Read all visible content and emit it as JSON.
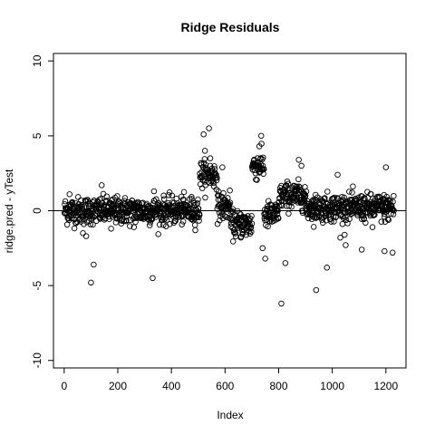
{
  "chart_data": {
    "type": "scatter",
    "title": "Ridge Residuals",
    "xlabel": "Index",
    "ylabel": "ridge.pred - yTest",
    "xlim": [
      -40,
      1275
    ],
    "ylim": [
      -10.5,
      10.5
    ],
    "x_ticks": [
      0,
      200,
      400,
      600,
      800,
      1000,
      1200
    ],
    "y_ticks": [
      -10,
      -5,
      0,
      5,
      10
    ],
    "reference_line": 0,
    "n_points": 1230,
    "point_style": "open-circle",
    "baseline_noise_sd": 0.45,
    "segments": [
      {
        "x_start": 1,
        "x_end": 505,
        "level": 0.0
      },
      {
        "x_start": 506,
        "x_end": 570,
        "level": 2.4
      },
      {
        "x_start": 571,
        "x_end": 620,
        "level": 0.3
      },
      {
        "x_start": 621,
        "x_end": 700,
        "level": -0.9
      },
      {
        "x_start": 701,
        "x_end": 745,
        "level": 3.0
      },
      {
        "x_start": 746,
        "x_end": 800,
        "level": -0.3
      },
      {
        "x_start": 801,
        "x_end": 900,
        "level": 1.0
      },
      {
        "x_start": 901,
        "x_end": 1230,
        "level": 0.2
      }
    ],
    "notable_points": [
      {
        "x": 20,
        "y": 1.1
      },
      {
        "x": 70,
        "y": -1.5
      },
      {
        "x": 82,
        "y": -1.7
      },
      {
        "x": 100,
        "y": -4.8
      },
      {
        "x": 110,
        "y": -3.6
      },
      {
        "x": 140,
        "y": 1.7
      },
      {
        "x": 175,
        "y": -1.2
      },
      {
        "x": 260,
        "y": -1.1
      },
      {
        "x": 330,
        "y": -4.5
      },
      {
        "x": 335,
        "y": 1.3
      },
      {
        "x": 520,
        "y": 5.1
      },
      {
        "x": 525,
        "y": 4.0
      },
      {
        "x": 540,
        "y": 5.5
      },
      {
        "x": 545,
        "y": 3.5
      },
      {
        "x": 590,
        "y": 2.9
      },
      {
        "x": 680,
        "y": -1.4
      },
      {
        "x": 735,
        "y": 5.0
      },
      {
        "x": 728,
        "y": 4.3
      },
      {
        "x": 740,
        "y": -2.5
      },
      {
        "x": 750,
        "y": -3.2
      },
      {
        "x": 810,
        "y": -6.2
      },
      {
        "x": 825,
        "y": -3.5
      },
      {
        "x": 875,
        "y": 3.4
      },
      {
        "x": 885,
        "y": 3.0
      },
      {
        "x": 940,
        "y": -5.3
      },
      {
        "x": 980,
        "y": -3.8
      },
      {
        "x": 1020,
        "y": 2.4
      },
      {
        "x": 1030,
        "y": -1.8
      },
      {
        "x": 1050,
        "y": -2.3
      },
      {
        "x": 1110,
        "y": -2.6
      },
      {
        "x": 1200,
        "y": 2.9
      },
      {
        "x": 1195,
        "y": -2.7
      },
      {
        "x": 1225,
        "y": -2.8
      },
      {
        "x": 1150,
        "y": -1.1
      }
    ],
    "grid": false,
    "legend": "none"
  }
}
